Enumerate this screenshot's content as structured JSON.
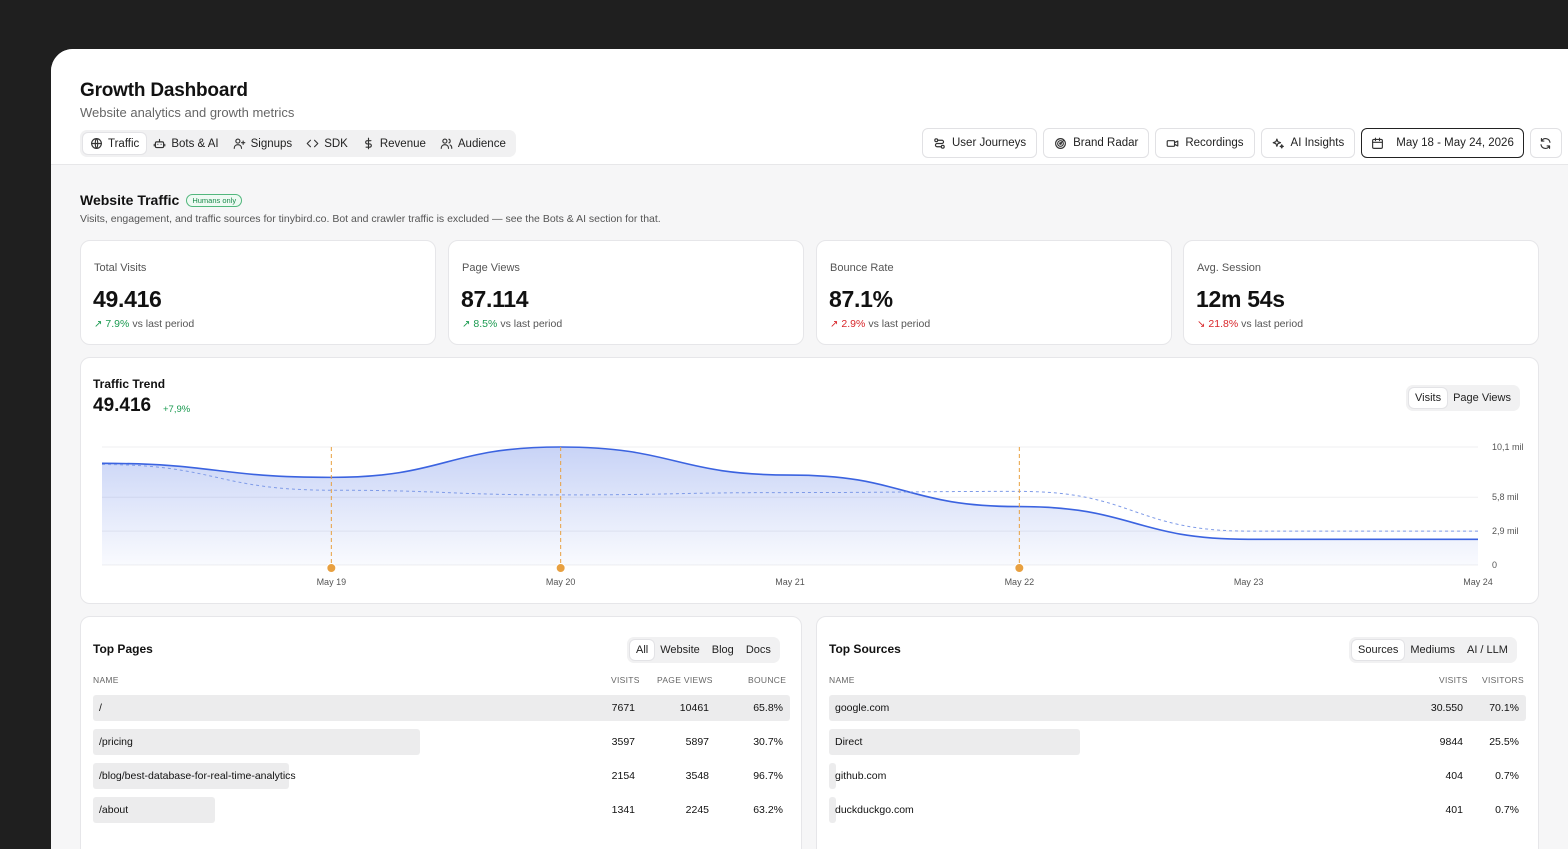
{
  "header": {
    "title": "Growth Dashboard",
    "subtitle": "Website analytics and growth metrics",
    "tabs": [
      {
        "label": "Traffic",
        "icon": "globe-icon",
        "active": true
      },
      {
        "label": "Bots & AI",
        "icon": "bot-icon"
      },
      {
        "label": "Signups",
        "icon": "user-plus-icon"
      },
      {
        "label": "SDK",
        "icon": "code-icon"
      },
      {
        "label": "Revenue",
        "icon": "dollar-icon"
      },
      {
        "label": "Audience",
        "icon": "users-icon"
      }
    ],
    "actions": {
      "journeys": "User Journeys",
      "radar": "Brand Radar",
      "recordings": "Recordings",
      "insights": "AI Insights",
      "date_range": "May 18 - May 24, 2026"
    }
  },
  "section": {
    "title": "Website Traffic",
    "badge": "Humans only",
    "description": "Visits, engagement, and traffic sources for tinybird.co. Bot and crawler traffic is excluded — see the Bots & AI section for that."
  },
  "kpis": [
    {
      "label": "Total Visits",
      "value": "49.416",
      "delta": "7.9%",
      "direction": "up",
      "suffix": "vs last period"
    },
    {
      "label": "Page Views",
      "value": "87.114",
      "delta": "8.5%",
      "direction": "up",
      "suffix": "vs last period"
    },
    {
      "label": "Bounce Rate",
      "value": "87.1%",
      "delta": "2.9%",
      "direction": "up-bad",
      "suffix": "vs last period"
    },
    {
      "label": "Avg. Session",
      "value": "12m 54s",
      "delta": "21.8%",
      "direction": "down",
      "suffix": "vs last period"
    }
  ],
  "trend": {
    "title": "Traffic Trend",
    "value": "49.416",
    "delta": "+7,9%",
    "toggle": [
      "Visits",
      "Page Views"
    ],
    "toggle_active": "Visits"
  },
  "chart_data": {
    "type": "area",
    "title": "Traffic Trend",
    "x": [
      "May 18",
      "May 19",
      "May 20",
      "May 21",
      "May 22",
      "May 23",
      "May 24"
    ],
    "x_tick_labels": [
      "May 19",
      "May 20",
      "May 21",
      "May 22",
      "May 23",
      "May 24"
    ],
    "y_tick_labels": [
      {
        "value": 0,
        "label": "0"
      },
      {
        "value": 2900,
        "label": "2,9 mil"
      },
      {
        "value": 5800,
        "label": "5,8 mil"
      },
      {
        "value": 10100,
        "label": "10,1 mil"
      }
    ],
    "ylim": [
      0,
      10100
    ],
    "series": [
      {
        "values": [
          8700,
          7500,
          10100,
          7700,
          5000,
          2200,
          2200
        ],
        "style": "solid-area",
        "color": "#3b63e0"
      },
      {
        "values": [
          8600,
          6400,
          6000,
          6200,
          6300,
          2900,
          2900
        ],
        "style": "dashed",
        "color": "#7f9be8"
      }
    ],
    "annotations": [
      {
        "x": "May 19",
        "color": "#e8a040"
      },
      {
        "x": "May 20",
        "color": "#e8a040"
      },
      {
        "x": "May 22",
        "color": "#e8a040"
      }
    ],
    "grid": true
  },
  "top_pages": {
    "title": "Top Pages",
    "filters": [
      "All",
      "Website",
      "Blog",
      "Docs"
    ],
    "active_filter": "All",
    "columns": [
      "NAME",
      "VISITS",
      "PAGE VIEWS",
      "BOUNCE"
    ],
    "rows": [
      {
        "name": "/",
        "visits": "7671",
        "views": "10461",
        "bounce": "65.8%",
        "share": 1.0
      },
      {
        "name": "/pricing",
        "visits": "3597",
        "views": "5897",
        "bounce": "30.7%",
        "share": 0.469
      },
      {
        "name": "/blog/best-database-for-real-time-analytics",
        "visits": "2154",
        "views": "3548",
        "bounce": "96.7%",
        "share": 0.281
      },
      {
        "name": "/about",
        "visits": "1341",
        "views": "2245",
        "bounce": "63.2%",
        "share": 0.175
      }
    ]
  },
  "top_sources": {
    "title": "Top Sources",
    "filters": [
      "Sources",
      "Mediums",
      "AI / LLM"
    ],
    "active_filter": "Sources",
    "columns": [
      "NAME",
      "VISITS",
      "VISITORS"
    ],
    "rows": [
      {
        "name": "google.com",
        "visits": "30.550",
        "visitors": "70.1%",
        "share": 1.0
      },
      {
        "name": "Direct",
        "visits": "9844",
        "visitors": "25.5%",
        "share": 0.36
      },
      {
        "name": "github.com",
        "visits": "404",
        "visitors": "0.7%",
        "share": 0.01
      },
      {
        "name": "duckduckgo.com",
        "visits": "401",
        "visitors": "0.7%",
        "share": 0.01
      }
    ]
  }
}
